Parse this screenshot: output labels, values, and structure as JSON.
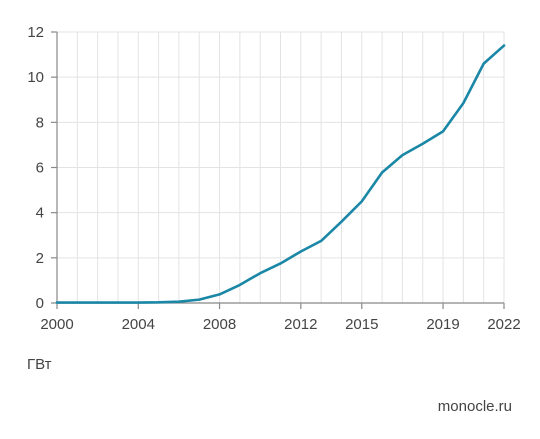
{
  "chart_data": {
    "type": "line",
    "x": [
      2000,
      2001,
      2002,
      2003,
      2004,
      2005,
      2006,
      2007,
      2008,
      2009,
      2010,
      2011,
      2012,
      2013,
      2014,
      2015,
      2016,
      2017,
      2018,
      2019,
      2020,
      2021,
      2022
    ],
    "series": [
      {
        "values": [
          0.02,
          0.02,
          0.02,
          0.02,
          0.02,
          0.03,
          0.06,
          0.15,
          0.38,
          0.8,
          1.32,
          1.75,
          2.28,
          2.75,
          3.6,
          4.5,
          5.78,
          6.55,
          7.05,
          7.6,
          8.85,
          10.6,
          11.4
        ],
        "color": "#1b87a6"
      }
    ],
    "xticks": [
      "2000",
      "2004",
      "2008",
      "2012",
      "2015",
      "2019",
      "2022"
    ],
    "yticks": [
      "0",
      "2",
      "4",
      "6",
      "8",
      "10",
      "12"
    ],
    "ylim": [
      0,
      12
    ],
    "xlim": [
      2000,
      2022
    ],
    "ylabel": "ГВт",
    "grid": true
  },
  "source": "monocle.ru"
}
